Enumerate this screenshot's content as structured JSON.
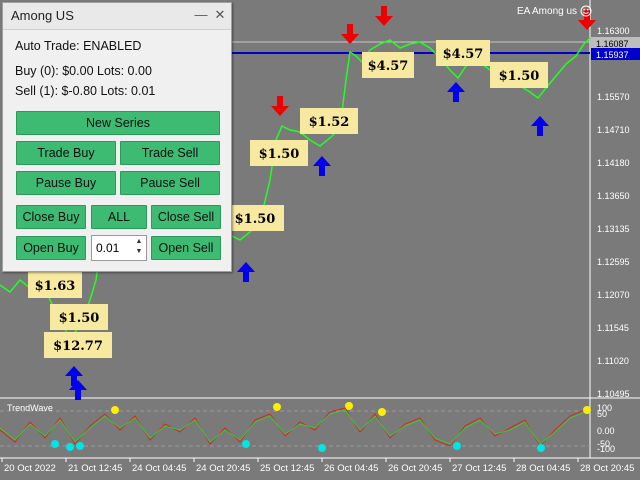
{
  "window": {
    "title": "Among US",
    "minimize_glyph": "—",
    "close_glyph": "✕"
  },
  "status": {
    "auto_trade": "Auto Trade: ENABLED",
    "buy_line": "Buy (0): $0.00 Lots: 0.00",
    "sell_line": "Sell (1): $-0.80 Lots: 0.01"
  },
  "buttons": {
    "new_series": "New Series",
    "trade_buy": "Trade Buy",
    "trade_sell": "Trade Sell",
    "pause_buy": "Pause Buy",
    "pause_sell": "Pause Sell",
    "close_buy": "Close Buy",
    "all": "ALL",
    "close_sell": "Close Sell",
    "open_buy": "Open Buy",
    "open_sell": "Open Sell"
  },
  "lots_input": {
    "value": "0.01"
  },
  "ea_label": "EA Among us",
  "indicator_label": "TrendWave",
  "price_axis": {
    "ticks": [
      "1.16300",
      "1.15570",
      "1.14710",
      "1.14180",
      "1.13650",
      "1.13135",
      "1.12595",
      "1.12070",
      "1.11545",
      "1.11020",
      "1.10495"
    ],
    "highlight_grey": "1.16087",
    "highlight_blue": "1.15937"
  },
  "indicator_axis": {
    "ticks": [
      "100",
      "50",
      "0.00",
      "-50",
      "-100"
    ]
  },
  "time_axis": {
    "ticks": [
      "20 Oct 2022",
      "21 Oct 12:45",
      "24 Oct 04:45",
      "24 Oct 20:45",
      "25 Oct 12:45",
      "26 Oct 04:45",
      "26 Oct 20:45",
      "27 Oct 12:45",
      "28 Oct 04:45",
      "28 Oct 20:45"
    ]
  },
  "profit_labels": [
    "$1.63",
    "$1.50",
    "$12.77",
    "$1.50",
    "$1.50",
    "$1.52",
    "$4.57",
    "$4.57",
    "$1.50"
  ],
  "colors": {
    "chart_bg": "#7a7a7a",
    "price_line": "#22ff22",
    "button": "#3dbb73",
    "buy_arrow": "#0000ee",
    "sell_arrow": "#ee0000",
    "label_bg": "#f7e9a0",
    "blue_level": "#0000cc"
  }
}
